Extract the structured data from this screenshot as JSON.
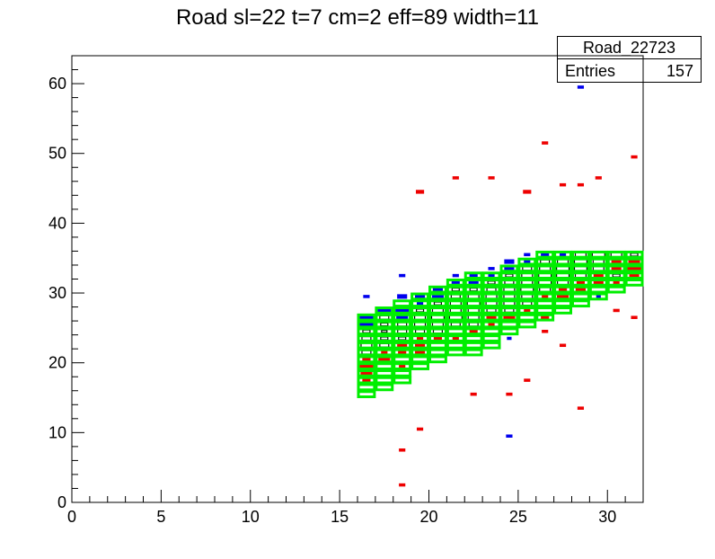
{
  "title": "Road sl=22 t=7 cm=2 eff=89 width=11",
  "stats": {
    "name": "Road_22723",
    "entries_label": "Entries",
    "entries_value": "157"
  },
  "colors": {
    "blue": "#0000ee",
    "red": "#ee0000",
    "green": "#00ee00",
    "black": "#000000"
  },
  "chart_data": {
    "type": "heatmap",
    "title": "Road sl=22 t=7 cm=2 eff=89 width=11",
    "xlabel": "",
    "ylabel": "",
    "xlim": [
      0,
      32
    ],
    "ylim": [
      0,
      64
    ],
    "x_ticks": [
      0,
      5,
      10,
      15,
      20,
      25,
      30
    ],
    "y_ticks": [
      0,
      10,
      20,
      30,
      40,
      50,
      60
    ],
    "road_boxes": [
      {
        "x": 16,
        "y_min": 15,
        "y_max": 27
      },
      {
        "x": 17,
        "y_min": 16,
        "y_max": 28
      },
      {
        "x": 18,
        "y_min": 17,
        "y_max": 29
      },
      {
        "x": 19,
        "y_min": 19,
        "y_max": 30
      },
      {
        "x": 20,
        "y_min": 20,
        "y_max": 31
      },
      {
        "x": 21,
        "y_min": 21,
        "y_max": 32
      },
      {
        "x": 22,
        "y_min": 21,
        "y_max": 33
      },
      {
        "x": 23,
        "y_min": 22,
        "y_max": 33
      },
      {
        "x": 24,
        "y_min": 24,
        "y_max": 34
      },
      {
        "x": 25,
        "y_min": 25,
        "y_max": 35
      },
      {
        "x": 26,
        "y_min": 26,
        "y_max": 36
      },
      {
        "x": 27,
        "y_min": 27,
        "y_max": 36
      },
      {
        "x": 28,
        "y_min": 28,
        "y_max": 36
      },
      {
        "x": 29,
        "y_min": 29,
        "y_max": 36
      },
      {
        "x": 30,
        "y_min": 30,
        "y_max": 36
      },
      {
        "x": 31,
        "y_min": 31,
        "y_max": 36
      }
    ],
    "blue_cells": [
      {
        "x": 16,
        "y": 25,
        "w": 0.7
      },
      {
        "x": 16,
        "y": 26,
        "w": 0.7
      },
      {
        "x": 16,
        "y": 29,
        "w": 0.3
      },
      {
        "x": 17,
        "y": 27,
        "w": 0.7
      },
      {
        "x": 18,
        "y": 26,
        "w": 0.6
      },
      {
        "x": 18,
        "y": 27,
        "w": 0.7
      },
      {
        "x": 18,
        "y": 29,
        "w": 0.5
      },
      {
        "x": 18,
        "y": 32,
        "w": 0.3
      },
      {
        "x": 19,
        "y": 29,
        "w": 0.5
      },
      {
        "x": 19,
        "y": 28,
        "w": 0.3
      },
      {
        "x": 20,
        "y": 29,
        "w": 0.6
      },
      {
        "x": 20,
        "y": 30,
        "w": 0.5
      },
      {
        "x": 21,
        "y": 31,
        "w": 0.4
      },
      {
        "x": 21,
        "y": 32,
        "w": 0.3
      },
      {
        "x": 22,
        "y": 31,
        "w": 0.5
      },
      {
        "x": 22,
        "y": 32,
        "w": 0.4
      },
      {
        "x": 23,
        "y": 32,
        "w": 0.3
      },
      {
        "x": 23,
        "y": 33,
        "w": 0.3
      },
      {
        "x": 24,
        "y": 33,
        "w": 0.5
      },
      {
        "x": 24,
        "y": 34,
        "w": 0.5
      },
      {
        "x": 24,
        "y": 9,
        "w": 0.3
      },
      {
        "x": 24,
        "y": 23,
        "w": 0.2
      },
      {
        "x": 25,
        "y": 35,
        "w": 0.3
      },
      {
        "x": 25,
        "y": 34,
        "w": 0.3
      },
      {
        "x": 26,
        "y": 35,
        "w": 0.4
      },
      {
        "x": 27,
        "y": 35,
        "w": 0.3
      },
      {
        "x": 28,
        "y": 59,
        "w": 0.3
      },
      {
        "x": 29,
        "y": 29,
        "w": 0.2
      }
    ],
    "red_cells": [
      {
        "x": 16,
        "y": 17,
        "w": 0.4
      },
      {
        "x": 16,
        "y": 18,
        "w": 0.6
      },
      {
        "x": 16,
        "y": 19,
        "w": 0.7
      },
      {
        "x": 16,
        "y": 20,
        "w": 0.4
      },
      {
        "x": 17,
        "y": 20,
        "w": 0.6
      },
      {
        "x": 17,
        "y": 21,
        "w": 0.3
      },
      {
        "x": 18,
        "y": 2,
        "w": 0.3
      },
      {
        "x": 18,
        "y": 7,
        "w": 0.3
      },
      {
        "x": 18,
        "y": 21,
        "w": 0.4
      },
      {
        "x": 18,
        "y": 22,
        "w": 0.5
      },
      {
        "x": 18,
        "y": 19,
        "w": 0.3
      },
      {
        "x": 19,
        "y": 10,
        "w": 0.3
      },
      {
        "x": 19,
        "y": 21,
        "w": 0.5
      },
      {
        "x": 19,
        "y": 22,
        "w": 0.5
      },
      {
        "x": 19,
        "y": 23,
        "w": 0.3
      },
      {
        "x": 19,
        "y": 44,
        "w": 0.4
      },
      {
        "x": 20,
        "y": 23,
        "w": 0.4
      },
      {
        "x": 21,
        "y": 23,
        "w": 0.3
      },
      {
        "x": 21,
        "y": 46,
        "w": 0.3
      },
      {
        "x": 22,
        "y": 15,
        "w": 0.3
      },
      {
        "x": 22,
        "y": 24,
        "w": 0.4
      },
      {
        "x": 23,
        "y": 25,
        "w": 0.3
      },
      {
        "x": 23,
        "y": 26,
        "w": 0.5
      },
      {
        "x": 23,
        "y": 46,
        "w": 0.3
      },
      {
        "x": 24,
        "y": 15,
        "w": 0.3
      },
      {
        "x": 24,
        "y": 26,
        "w": 0.6
      },
      {
        "x": 25,
        "y": 17,
        "w": 0.3
      },
      {
        "x": 25,
        "y": 44,
        "w": 0.4
      },
      {
        "x": 25,
        "y": 27,
        "w": 0.3
      },
      {
        "x": 26,
        "y": 24,
        "w": 0.3
      },
      {
        "x": 26,
        "y": 26,
        "w": 0.4
      },
      {
        "x": 26,
        "y": 29,
        "w": 0.3
      },
      {
        "x": 26,
        "y": 51,
        "w": 0.3
      },
      {
        "x": 27,
        "y": 22,
        "w": 0.3
      },
      {
        "x": 27,
        "y": 29,
        "w": 0.6
      },
      {
        "x": 27,
        "y": 30,
        "w": 0.4
      },
      {
        "x": 27,
        "y": 45,
        "w": 0.3
      },
      {
        "x": 28,
        "y": 13,
        "w": 0.3
      },
      {
        "x": 28,
        "y": 30,
        "w": 0.5
      },
      {
        "x": 28,
        "y": 31,
        "w": 0.4
      },
      {
        "x": 28,
        "y": 45,
        "w": 0.3
      },
      {
        "x": 29,
        "y": 31,
        "w": 0.5
      },
      {
        "x": 29,
        "y": 32,
        "w": 0.5
      },
      {
        "x": 29,
        "y": 46,
        "w": 0.3
      },
      {
        "x": 30,
        "y": 27,
        "w": 0.3
      },
      {
        "x": 30,
        "y": 31,
        "w": 0.3
      },
      {
        "x": 30,
        "y": 33,
        "w": 0.5
      },
      {
        "x": 30,
        "y": 34,
        "w": 0.5
      },
      {
        "x": 31,
        "y": 26,
        "w": 0.3
      },
      {
        "x": 31,
        "y": 32,
        "w": 0.5
      },
      {
        "x": 31,
        "y": 33,
        "w": 0.8
      },
      {
        "x": 31,
        "y": 34,
        "w": 0.6
      },
      {
        "x": 31,
        "y": 49,
        "w": 0.3
      }
    ],
    "black_cells": [
      {
        "x": 16,
        "y": 21,
        "w": 0.5
      },
      {
        "x": 16,
        "y": 22,
        "w": 0.6
      },
      {
        "x": 16,
        "y": 23,
        "w": 0.5
      },
      {
        "x": 16,
        "y": 24,
        "w": 0.4
      },
      {
        "x": 17,
        "y": 22,
        "w": 0.5
      },
      {
        "x": 17,
        "y": 23,
        "w": 0.4
      },
      {
        "x": 17,
        "y": 24,
        "w": 0.3
      },
      {
        "x": 17,
        "y": 25,
        "w": 0.4
      },
      {
        "x": 17,
        "y": 26,
        "w": 0.5
      },
      {
        "x": 18,
        "y": 23,
        "w": 0.4
      },
      {
        "x": 18,
        "y": 24,
        "w": 0.5
      },
      {
        "x": 18,
        "y": 25,
        "w": 0.5
      },
      {
        "x": 19,
        "y": 24,
        "w": 0.5
      },
      {
        "x": 19,
        "y": 25,
        "w": 0.6
      },
      {
        "x": 19,
        "y": 26,
        "w": 0.6
      },
      {
        "x": 19,
        "y": 27,
        "w": 0.4
      },
      {
        "x": 20,
        "y": 24,
        "w": 0.5
      },
      {
        "x": 20,
        "y": 25,
        "w": 0.6
      },
      {
        "x": 20,
        "y": 26,
        "w": 0.7
      },
      {
        "x": 20,
        "y": 27,
        "w": 0.6
      },
      {
        "x": 20,
        "y": 28,
        "w": 0.4
      },
      {
        "x": 21,
        "y": 25,
        "w": 0.5
      },
      {
        "x": 21,
        "y": 26,
        "w": 0.7
      },
      {
        "x": 21,
        "y": 27,
        "w": 0.6
      },
      {
        "x": 21,
        "y": 28,
        "w": 0.6
      },
      {
        "x": 21,
        "y": 29,
        "w": 0.5
      },
      {
        "x": 21,
        "y": 30,
        "w": 0.4
      },
      {
        "x": 22,
        "y": 25,
        "w": 0.5
      },
      {
        "x": 22,
        "y": 26,
        "w": 0.6
      },
      {
        "x": 22,
        "y": 27,
        "w": 0.6
      },
      {
        "x": 22,
        "y": 28,
        "w": 0.7
      },
      {
        "x": 22,
        "y": 29,
        "w": 0.6
      },
      {
        "x": 22,
        "y": 30,
        "w": 0.4
      },
      {
        "x": 23,
        "y": 27,
        "w": 0.5
      },
      {
        "x": 23,
        "y": 28,
        "w": 0.6
      },
      {
        "x": 23,
        "y": 29,
        "w": 0.6
      },
      {
        "x": 23,
        "y": 30,
        "w": 0.5
      },
      {
        "x": 23,
        "y": 31,
        "w": 0.4
      },
      {
        "x": 24,
        "y": 27,
        "w": 0.5
      },
      {
        "x": 24,
        "y": 28,
        "w": 0.6
      },
      {
        "x": 24,
        "y": 29,
        "w": 0.6
      },
      {
        "x": 24,
        "y": 30,
        "w": 0.6
      },
      {
        "x": 24,
        "y": 31,
        "w": 0.5
      },
      {
        "x": 24,
        "y": 32,
        "w": 0.4
      },
      {
        "x": 25,
        "y": 28,
        "w": 0.5
      },
      {
        "x": 25,
        "y": 29,
        "w": 0.6
      },
      {
        "x": 25,
        "y": 30,
        "w": 0.7
      },
      {
        "x": 25,
        "y": 31,
        "w": 0.6
      },
      {
        "x": 25,
        "y": 32,
        "w": 0.6
      },
      {
        "x": 25,
        "y": 33,
        "w": 0.5
      },
      {
        "x": 26,
        "y": 30,
        "w": 0.6
      },
      {
        "x": 26,
        "y": 31,
        "w": 0.7
      },
      {
        "x": 26,
        "y": 32,
        "w": 0.7
      },
      {
        "x": 26,
        "y": 33,
        "w": 0.6
      },
      {
        "x": 26,
        "y": 34,
        "w": 0.5
      },
      {
        "x": 27,
        "y": 31,
        "w": 0.6
      },
      {
        "x": 27,
        "y": 32,
        "w": 0.7
      },
      {
        "x": 27,
        "y": 33,
        "w": 0.7
      },
      {
        "x": 27,
        "y": 34,
        "w": 0.6
      },
      {
        "x": 28,
        "y": 32,
        "w": 0.6
      },
      {
        "x": 28,
        "y": 33,
        "w": 0.7
      },
      {
        "x": 28,
        "y": 34,
        "w": 0.7
      },
      {
        "x": 28,
        "y": 35,
        "w": 0.6
      },
      {
        "x": 29,
        "y": 33,
        "w": 0.6
      },
      {
        "x": 29,
        "y": 34,
        "w": 0.6
      },
      {
        "x": 29,
        "y": 35,
        "w": 0.7
      },
      {
        "x": 30,
        "y": 32,
        "w": 0.4
      },
      {
        "x": 30,
        "y": 35,
        "w": 0.6
      },
      {
        "x": 31,
        "y": 35,
        "w": 0.4
      }
    ]
  }
}
